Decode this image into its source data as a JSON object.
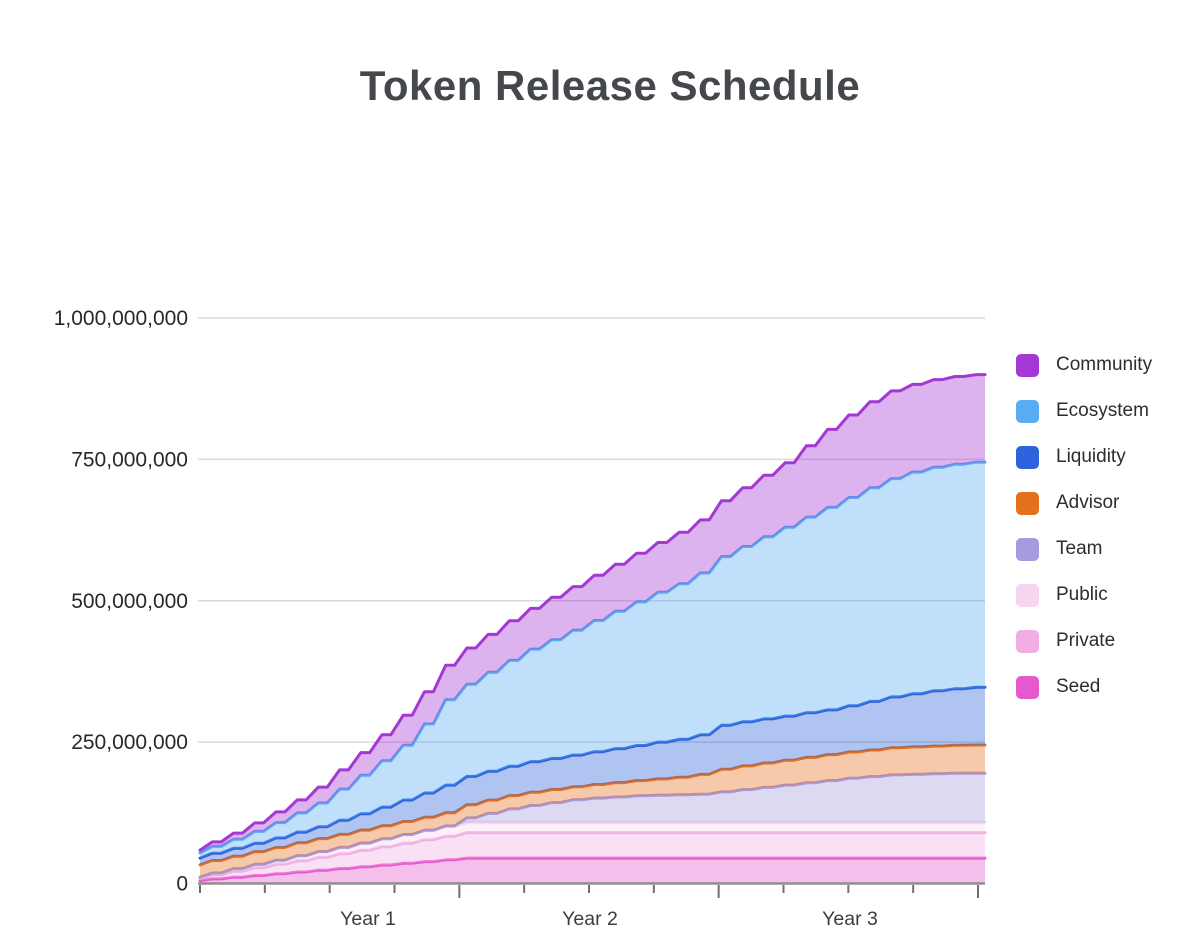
{
  "page": {
    "title": "Token Release Schedule"
  },
  "chart_data": {
    "type": "area",
    "stacked": true,
    "title": "Token Release Schedule",
    "grid": "horizontal",
    "legend_position": "right",
    "x_unit": "months",
    "x_range_months": [
      0,
      37
    ],
    "x_axis": {
      "labels": [
        "Year 1",
        "Year 2",
        "Year 3"
      ],
      "minor_ticks_every_months": 3,
      "major_ticks_every_months": 12
    },
    "y_axis": {
      "min": 0,
      "max": 1000000000,
      "tick_values": [
        0,
        250000000,
        500000000,
        750000000,
        1000000000
      ],
      "tick_labels": [
        "0",
        "250,000,000",
        "500,000,000",
        "750,000,000",
        "1,000,000,000"
      ]
    },
    "axis_color": "#8f8f8f",
    "gridline_color": "#d9d9d9",
    "label_color": "#26282b",
    "fill_alpha": 0.38,
    "legend_order_top_to_bottom": [
      "Community",
      "Ecosystem",
      "Liquidity",
      "Advisor",
      "Team",
      "Public",
      "Private",
      "Seed"
    ],
    "series_bottom_to_top": [
      {
        "name": "Seed",
        "color": "#e558ce",
        "final_millions": 45,
        "cumulative_millions": [
          5,
          8.1,
          11.2,
          14.2,
          17.3,
          20.4,
          23.5,
          26.5,
          29.6,
          32.7,
          35.8,
          38.8,
          41.9,
          45,
          45,
          45,
          45,
          45,
          45,
          45,
          45,
          45,
          45,
          45,
          45,
          45,
          45,
          45,
          45,
          45,
          45,
          45,
          45,
          45,
          45,
          45,
          45,
          45
        ]
      },
      {
        "name": "Private",
        "color": "#f0aee2",
        "final_millions": 45,
        "cumulative_millions": [
          4,
          7.2,
          10.3,
          13.5,
          16.6,
          19.8,
          22.9,
          26.1,
          29.2,
          32.4,
          35.5,
          38.6,
          41.8,
          45,
          45,
          45,
          45,
          45,
          45,
          45,
          45,
          45,
          45,
          45,
          45,
          45,
          45,
          45,
          45,
          45,
          45,
          45,
          45,
          45,
          45,
          45,
          45,
          45
        ]
      },
      {
        "name": "Public",
        "color": "#f7d4f0",
        "final_millions": 18,
        "cumulative_millions": [
          2,
          3.3,
          4.7,
          6,
          7.3,
          8.7,
          10,
          11.3,
          12.7,
          14,
          15.3,
          16.7,
          18,
          18,
          18,
          18,
          18,
          18,
          18,
          18,
          18,
          18,
          18,
          18,
          18,
          18,
          18,
          18,
          18,
          18,
          18,
          18,
          18,
          18,
          18,
          18,
          18,
          18
        ]
      },
      {
        "name": "Team",
        "color": "#a79ade",
        "final_millions": 87,
        "cumulative_millions": [
          0,
          0,
          0,
          0,
          0,
          0,
          0,
          0,
          0,
          0,
          0,
          0,
          0,
          8,
          16,
          24,
          30,
          35,
          40,
          43,
          45,
          47,
          48,
          49,
          50,
          54,
          58,
          62,
          66,
          70,
          74,
          78,
          81,
          84,
          85,
          86,
          87,
          87
        ]
      },
      {
        "name": "Advisor",
        "color": "#e4701e",
        "final_millions": 50,
        "cumulative_millions": [
          22,
          22,
          22,
          22.5,
          22.5,
          23,
          23,
          23,
          23,
          23,
          23,
          23,
          23.3,
          23.4,
          23.5,
          23.5,
          23.5,
          23.2,
          23,
          24,
          25.5,
          27,
          29,
          31,
          35,
          40,
          42,
          43,
          44,
          45,
          46,
          46.5,
          47,
          48,
          48.5,
          49,
          49.5,
          50
        ]
      },
      {
        "name": "Liquidity",
        "color": "#2f63dd",
        "final_millions": 102,
        "cumulative_millions": [
          12,
          13,
          14,
          15,
          17,
          19,
          21,
          25,
          29,
          33,
          38,
          43,
          49,
          50,
          51,
          52,
          54,
          55,
          56,
          58,
          60,
          62,
          65,
          67,
          70,
          78,
          78,
          78,
          78,
          79,
          79,
          82,
          86,
          90,
          94,
          98,
          100,
          102
        ]
      },
      {
        "name": "Ecosystem",
        "color": "#58acf2",
        "final_millions": 398,
        "cumulative_millions": [
          9,
          12,
          16,
          21,
          27,
          34,
          42,
          55,
          68,
          82,
          97,
          122,
          151,
          163,
          175,
          187,
          199,
          210,
          221,
          232,
          243,
          254,
          265,
          275,
          286,
          298,
          310,
          322,
          334,
          346,
          358,
          368,
          378,
          386,
          392,
          395,
          397,
          398
        ]
      },
      {
        "name": "Community",
        "color": "#a338d4",
        "final_millions": 155,
        "cumulative_millions": [
          5,
          8,
          11,
          15,
          19,
          23,
          28,
          34,
          40,
          46,
          53,
          57,
          61,
          64,
          67,
          70,
          72,
          75,
          77,
          80,
          83,
          86,
          88,
          91,
          94,
          99,
          104,
          109,
          114,
          126,
          138,
          146,
          152,
          155,
          155,
          155,
          155,
          155
        ]
      }
    ],
    "total_released_at_end_millions": 900
  }
}
